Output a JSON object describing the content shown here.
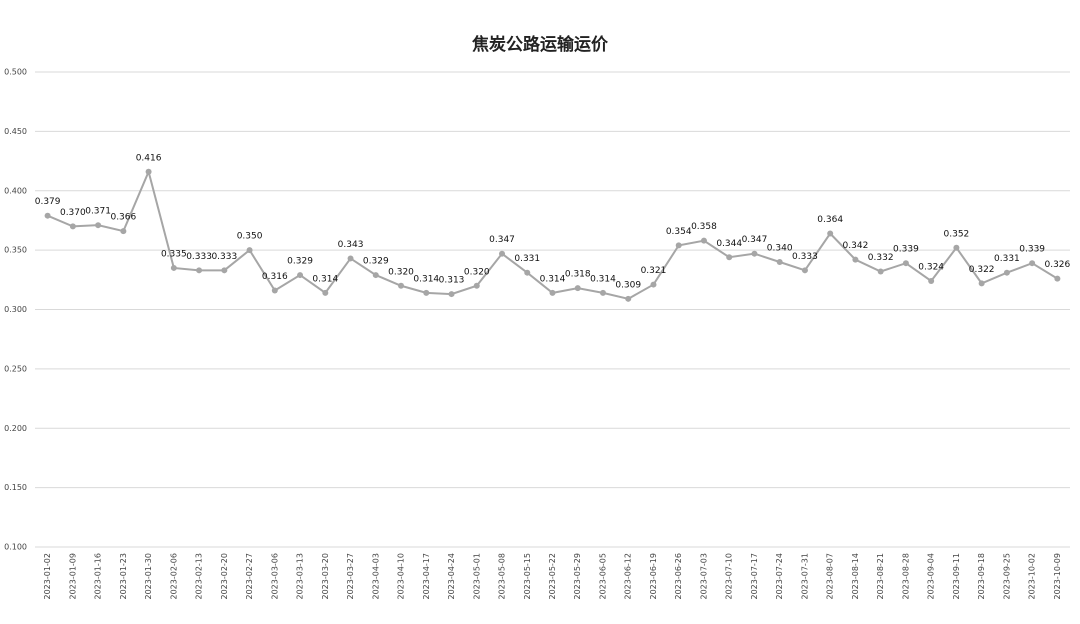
{
  "chart_data": {
    "type": "line",
    "title": "焦炭公路运输运价",
    "categories": [
      "2023-01-02",
      "2023-01-09",
      "2023-01-16",
      "2023-01-23",
      "2023-01-30",
      "2023-02-06",
      "2023-02-13",
      "2023-02-20",
      "2023-02-27",
      "2023-03-06",
      "2023-03-13",
      "2023-03-20",
      "2023-03-27",
      "2023-04-03",
      "2023-04-10",
      "2023-04-17",
      "2023-04-24",
      "2023-05-01",
      "2023-05-08",
      "2023-05-15",
      "2023-05-22",
      "2023-05-29",
      "2023-06-05",
      "2023-06-12",
      "2023-06-19",
      "2023-06-26",
      "2023-07-03",
      "2023-07-10",
      "2023-07-17",
      "2023-07-24",
      "2023-07-31",
      "2023-08-07",
      "2023-08-14",
      "2023-08-21",
      "2023-08-28",
      "2023-09-04",
      "2023-09-11",
      "2023-09-18",
      "2023-09-25",
      "2023-10-02",
      "2023-10-09"
    ],
    "values": [
      0.379,
      0.37,
      0.371,
      0.366,
      0.416,
      0.335,
      0.333,
      0.333,
      0.35,
      0.316,
      0.329,
      0.314,
      0.343,
      0.329,
      0.32,
      0.314,
      0.313,
      0.32,
      0.347,
      0.331,
      0.314,
      0.318,
      0.314,
      0.309,
      0.321,
      0.354,
      0.358,
      0.344,
      0.347,
      0.34,
      0.333,
      0.364,
      0.342,
      0.332,
      0.339,
      0.324,
      0.352,
      0.322,
      0.331,
      0.339,
      0.326
    ],
    "value_labels": [
      "0.379",
      "0.370",
      "0.371",
      "0.366",
      "0.416",
      "0.335",
      "0.333",
      "0.333",
      "0.350",
      "0.316",
      "0.329",
      "0.314",
      "0.343",
      "0.329",
      "0.320",
      "0.314",
      "0.313",
      "0.320",
      "0.347",
      "0.331",
      "0.314",
      "0.318",
      "0.314",
      "0.309",
      "0.321",
      "0.354",
      "0.358",
      "0.344",
      "0.347",
      "0.340",
      "0.333",
      "0.364",
      "0.342",
      "0.332",
      "0.339",
      "0.324",
      "0.352",
      "0.322",
      "0.331",
      "0.339",
      "0.326"
    ],
    "color": "#a6a6a6",
    "ylim": [
      0.1,
      0.5
    ],
    "yticks": [
      {
        "value": 0.1,
        "label": "0.100"
      },
      {
        "value": 0.15,
        "label": "0.150"
      },
      {
        "value": 0.2,
        "label": "0.200"
      },
      {
        "value": 0.25,
        "label": "0.250"
      },
      {
        "value": 0.3,
        "label": "0.300"
      },
      {
        "value": 0.35,
        "label": "0.350"
      },
      {
        "value": 0.4,
        "label": "0.400"
      },
      {
        "value": 0.45,
        "label": "0.450"
      },
      {
        "value": 0.5,
        "label": "0.500"
      }
    ],
    "grid": true
  }
}
